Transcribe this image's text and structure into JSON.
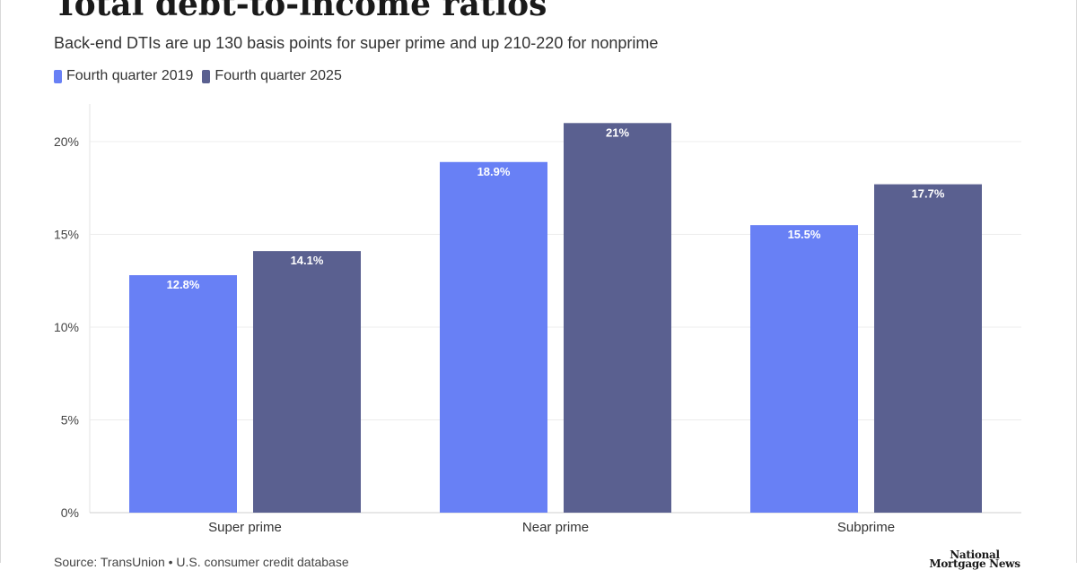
{
  "header": {
    "title": "Total debt-to-income ratios",
    "subtitle": "Back-end DTIs are up 130 basis points for super prime and up 210-220 for nonprime"
  },
  "legend": [
    {
      "label": "Fourth quarter 2019",
      "color": "#6880f5"
    },
    {
      "label": "Fourth quarter 2025",
      "color": "#5a6090"
    }
  ],
  "chart_data": {
    "type": "bar",
    "categories": [
      "Super prime",
      "Near prime",
      "Subprime"
    ],
    "series": [
      {
        "name": "Fourth quarter 2019",
        "values": [
          12.8,
          18.9,
          15.5
        ],
        "labels": [
          "12.8%",
          "18.9%",
          "15.5%"
        ],
        "color": "#6880f5"
      },
      {
        "name": "Fourth quarter 2025",
        "values": [
          14.1,
          21,
          17.7
        ],
        "labels": [
          "14.1%",
          "21%",
          "17.7%"
        ],
        "color": "#5a6090"
      }
    ],
    "yticks": [
      0,
      5,
      10,
      15,
      20
    ],
    "ytick_labels": [
      "0%",
      "5%",
      "10%",
      "15%",
      "20%"
    ],
    "ylim": [
      0,
      22
    ],
    "grid": true,
    "legend_position": "top-left"
  },
  "footer": {
    "source": "Source: TransUnion • U.S. consumer credit database",
    "logo_text": "National Mortgage News"
  }
}
